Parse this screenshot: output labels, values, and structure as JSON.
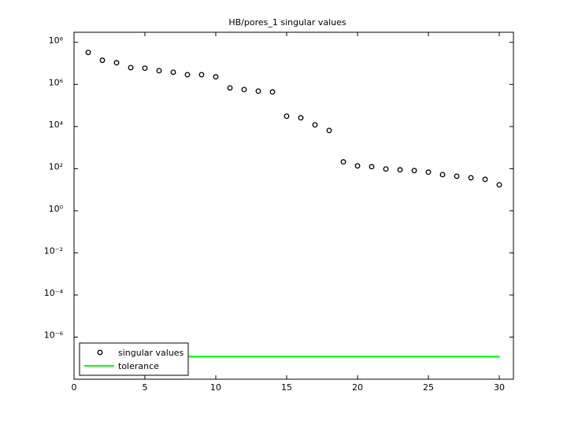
{
  "chart_data": {
    "type": "scatter",
    "title": "HB/pores_1 singular values",
    "log_y": true,
    "xlim": [
      0,
      31
    ],
    "xticks": [
      0,
      5,
      10,
      15,
      20,
      25,
      30
    ],
    "ylim": [
      1e-08,
      300000000
    ],
    "yticks": [
      {
        "value": 1e-06,
        "label": "10⁻⁶"
      },
      {
        "value": 0.0001,
        "label": "10⁻⁴"
      },
      {
        "value": 0.01,
        "label": "10⁻²"
      },
      {
        "value": 1,
        "label": "10⁰"
      },
      {
        "value": 100,
        "label": "10²"
      },
      {
        "value": 10000,
        "label": "10⁴"
      },
      {
        "value": 1000000,
        "label": "10⁶"
      },
      {
        "value": 100000000,
        "label": "10⁸"
      }
    ],
    "legend": "lower left",
    "series": [
      {
        "name": "singular values",
        "color": "#000000",
        "marker": "circle",
        "x": [
          1,
          2,
          3,
          4,
          5,
          6,
          7,
          8,
          9,
          10,
          11,
          12,
          13,
          14,
          15,
          16,
          17,
          18,
          19,
          20,
          21,
          22,
          23,
          24,
          25,
          26,
          27,
          28,
          29,
          30
        ],
        "values": [
          33000000,
          14000000,
          10700000,
          6300000,
          5900000,
          4500000,
          3800000,
          2900000,
          2900000,
          2300000,
          680000,
          570000,
          480000,
          440000,
          31000,
          26000,
          12000,
          6500,
          210,
          135,
          124,
          96,
          88,
          81,
          68,
          52,
          44,
          37,
          31,
          17
        ]
      },
      {
        "name": "tolerance",
        "color": "#00ff00",
        "marker": "line",
        "x": [
          1,
          30
        ],
        "values": [
          1.2e-07,
          1.2e-07
        ]
      }
    ]
  }
}
